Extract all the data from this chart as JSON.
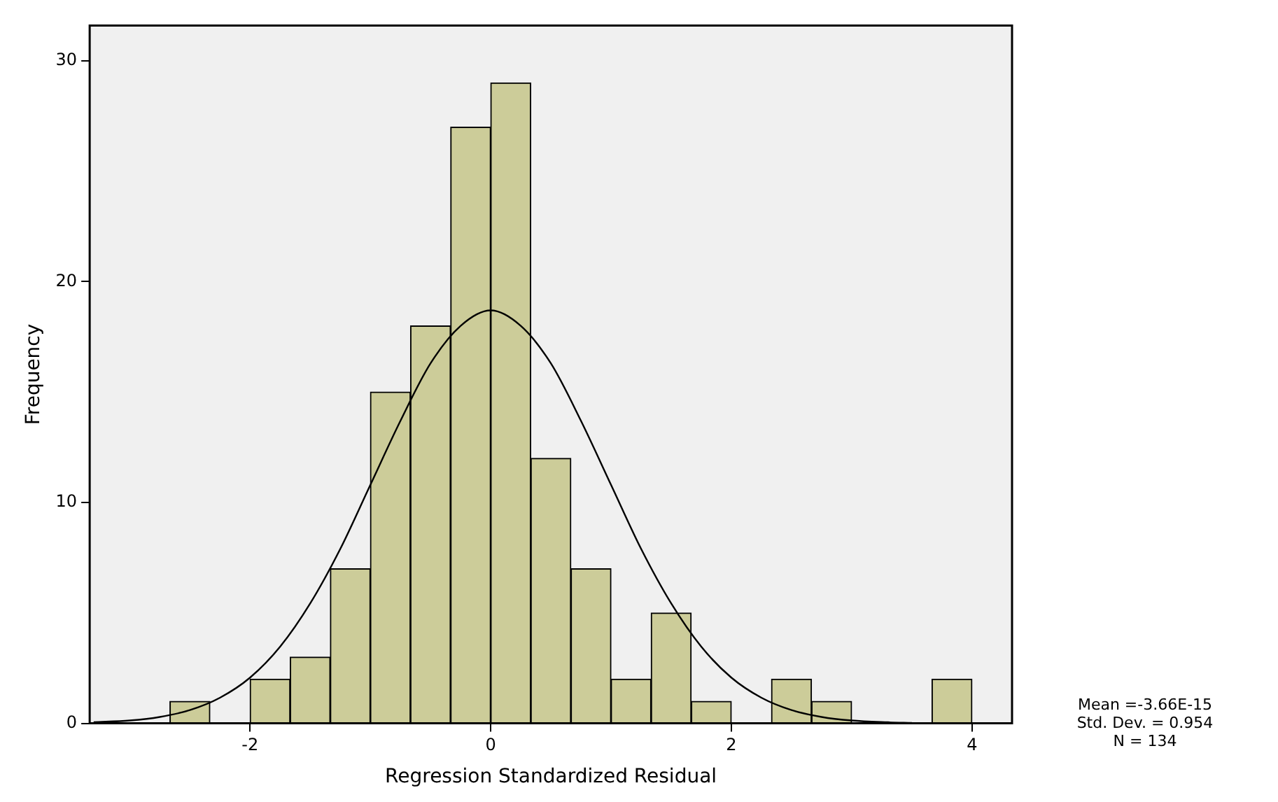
{
  "chart_data": {
    "type": "histogram",
    "xlabel": "Regression Standardized Residual",
    "ylabel": "Frequency",
    "bins": [
      -3.333,
      -3,
      -2.667,
      -2.333,
      -2,
      -1.667,
      -1.333,
      -1,
      -0.667,
      -0.333,
      0,
      0.333,
      0.667,
      1,
      1.333,
      1.667,
      2,
      2.333,
      2.667,
      3,
      3.333,
      3.667,
      4,
      4.333
    ],
    "series": [
      {
        "color": "#cccc99",
        "values": [
          0,
          0,
          1,
          0,
          2,
          3,
          7,
          15,
          18,
          27,
          29,
          12,
          7,
          2,
          5,
          1,
          0,
          2,
          1,
          0,
          0,
          2,
          0
        ]
      },
      {
        "type": "line",
        "color": "#000000",
        "x": [
          -3.3,
          -3,
          -2.75,
          -2.5,
          -2.25,
          -2,
          -1.75,
          -1.5,
          -1.25,
          -1,
          -0.75,
          -0.5,
          -0.25,
          0,
          0.25,
          0.5,
          0.75,
          1,
          1.25,
          1.5,
          1.75,
          2,
          2.25,
          2.5,
          2.75,
          3,
          3.3,
          3.5
        ],
        "values": [
          0.05,
          0.13,
          0.29,
          0.6,
          1.16,
          2.07,
          3.47,
          5.43,
          7.9,
          10.8,
          13.7,
          16.3,
          18,
          18.7,
          18,
          16.3,
          13.7,
          10.8,
          7.9,
          5.43,
          3.47,
          2.07,
          1.16,
          0.6,
          0.29,
          0.13,
          0.05,
          0.02
        ]
      }
    ],
    "xlim": [
      -3.333,
      4.333
    ],
    "xticks": [
      -2,
      0,
      2,
      4
    ],
    "ylim": [
      0,
      31.6
    ],
    "yticks": [
      0,
      10,
      20,
      30
    ],
    "grid": false,
    "legend": false,
    "marker": "none",
    "line_style": "solid",
    "annotations": [
      "Mean =-3.66E-15",
      "Std. Dev. = 0.954",
      "N = 134"
    ]
  }
}
